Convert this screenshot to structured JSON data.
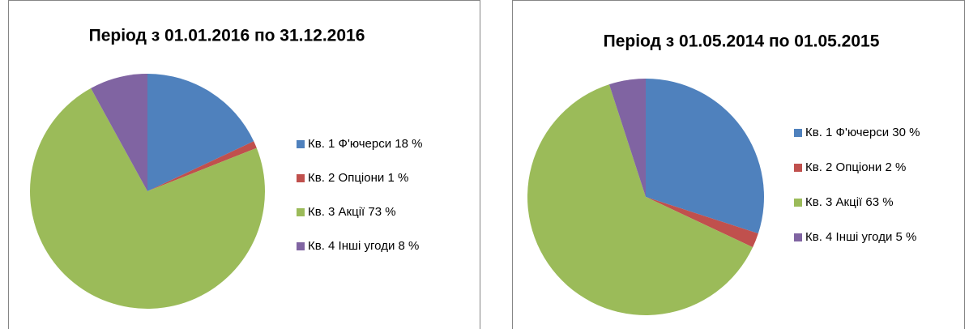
{
  "chart_data": [
    {
      "type": "pie",
      "title": "Період з 01.01.2016 по 31.12.2016",
      "categories": [
        "Кв. 1 Ф'ючерси 18 %",
        "Кв. 2 Опціони 1 %",
        "Кв. 3 Акції      73 %",
        "Кв. 4 Інші угоди 8 %"
      ],
      "values": [
        18,
        1,
        73,
        8
      ],
      "colors": [
        "#4f81bd",
        "#c0504d",
        "#9bbb59",
        "#8064a2"
      ]
    },
    {
      "type": "pie",
      "title": "Період з 01.05.2014 по 01.05.2015",
      "categories": [
        "Кв. 1 Ф'ючерси 30 %",
        "Кв. 2 Опціони     2 %",
        "Кв. 3 Акції 63 %",
        "Кв. 4 Інші угоди 5 %"
      ],
      "values": [
        30,
        2,
        63,
        5
      ],
      "colors": [
        "#4f81bd",
        "#c0504d",
        "#9bbb59",
        "#8064a2"
      ]
    }
  ]
}
